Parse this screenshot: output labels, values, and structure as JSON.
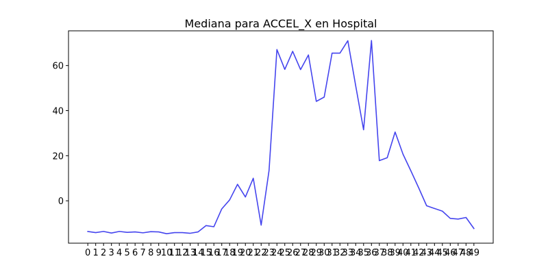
{
  "chart_data": {
    "type": "line",
    "title": "Mediana para ACCEL_X en Hospital",
    "xlabel": "",
    "ylabel": "",
    "x": [
      0,
      1,
      2,
      3,
      4,
      5,
      6,
      7,
      8,
      9,
      10,
      11,
      12,
      13,
      14,
      15,
      16,
      17,
      18,
      19,
      20,
      21,
      22,
      23,
      24,
      25,
      26,
      27,
      28,
      29,
      30,
      31,
      32,
      33,
      34,
      35,
      36,
      37,
      38,
      39,
      40,
      41,
      42,
      43,
      44,
      45,
      46,
      47,
      48,
      49
    ],
    "x_tick_labels": [
      "0",
      "1",
      "2",
      "3",
      "4",
      "5",
      "6",
      "7",
      "8",
      "9",
      "10",
      "11",
      "12",
      "13",
      "14",
      "15",
      "16",
      "17",
      "18",
      "19",
      "20",
      "21",
      "22",
      "23",
      "24",
      "25",
      "26",
      "27",
      "28",
      "29",
      "30",
      "31",
      "32",
      "33",
      "34",
      "35",
      "36",
      "37",
      "38",
      "39",
      "40",
      "41",
      "42",
      "43",
      "44",
      "45",
      "46",
      "47",
      "48",
      "49"
    ],
    "series": [
      {
        "name": "ACCEL_X",
        "color": "#4444ee",
        "values": [
          -13.6,
          -14.1,
          -13.6,
          -14.3,
          -13.6,
          -14.0,
          -13.8,
          -14.2,
          -13.7,
          -13.8,
          -14.6,
          -14.1,
          -14.1,
          -14.4,
          -13.8,
          -11.0,
          -11.5,
          -3.6,
          0.4,
          7.3,
          1.7,
          10.0,
          -10.8,
          13.4,
          67.1,
          58.3,
          66.3,
          58.2,
          64.7,
          44.1,
          46.0,
          65.5,
          65.5,
          71.0,
          51.0,
          31.5,
          71.1,
          17.8,
          19.1,
          30.5,
          20.7,
          13.3,
          5.7,
          -2.2,
          -3.4,
          -4.6,
          -7.8,
          -8.1,
          -7.4,
          -12.3
        ]
      }
    ],
    "y_ticks": [
      0,
      20,
      40,
      60
    ],
    "y_tick_labels": [
      "0",
      "20",
      "40",
      "60"
    ],
    "ylim": [
      -18.8,
      75.4
    ],
    "xlim": [
      -2.45,
      51.45
    ],
    "grid": false,
    "legend": "none"
  }
}
